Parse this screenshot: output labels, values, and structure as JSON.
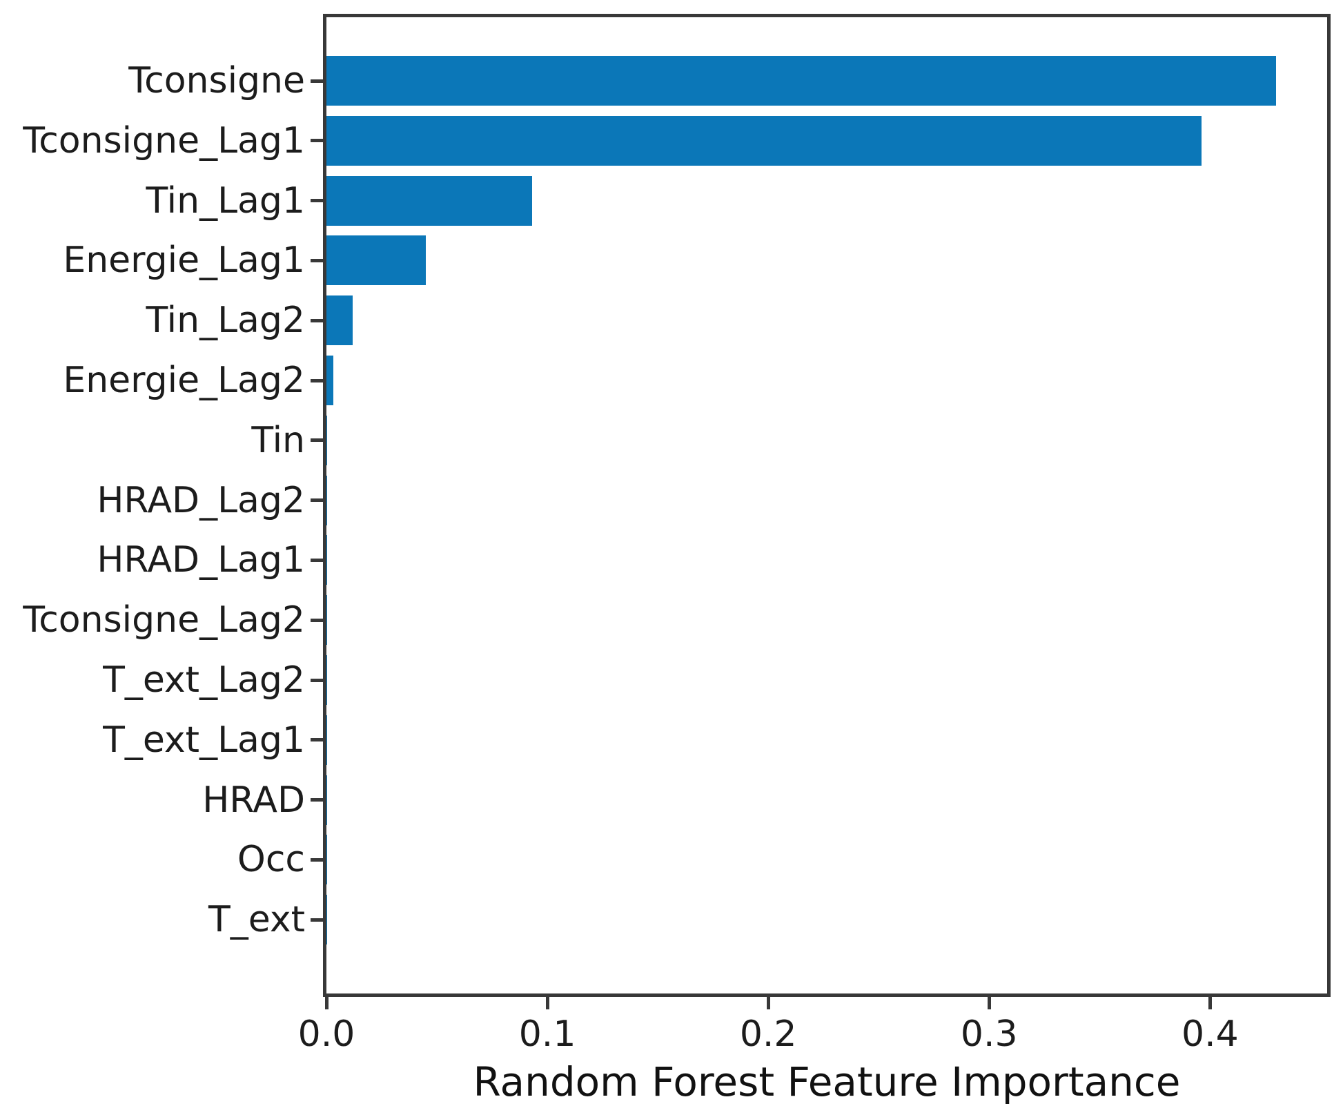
{
  "chart_data": {
    "type": "bar",
    "orientation": "horizontal",
    "title": "",
    "xlabel": "Random Forest Feature Importance",
    "ylabel": "",
    "categories": [
      "Tconsigne",
      "Tconsigne_Lag1",
      "Tin_Lag1",
      "Energie_Lag1",
      "Tin_Lag2",
      "Energie_Lag2",
      "Tin",
      "HRAD_Lag2",
      "HRAD_Lag1",
      "Tconsigne_Lag2",
      "T_ext_Lag2",
      "T_ext_Lag1",
      "HRAD",
      "Occ",
      "T_ext"
    ],
    "values": [
      0.43,
      0.396,
      0.093,
      0.045,
      0.012,
      0.003,
      0.0004,
      0.0003,
      0.0003,
      0.0002,
      0.0002,
      0.0002,
      0.0001,
      0.0001,
      0.0001
    ],
    "x_tick_labels": [
      "0.0",
      "0.1",
      "0.2",
      "0.3",
      "0.4"
    ],
    "x_tick_values": [
      0.0,
      0.1,
      0.2,
      0.3,
      0.4
    ],
    "xlim": [
      0.0,
      0.453
    ],
    "grid": false,
    "legend": "none",
    "bar_color": "#0b77b8",
    "axis_color": "#383838",
    "text_color": "#1c1c1c",
    "background_color": "#ffffff"
  }
}
